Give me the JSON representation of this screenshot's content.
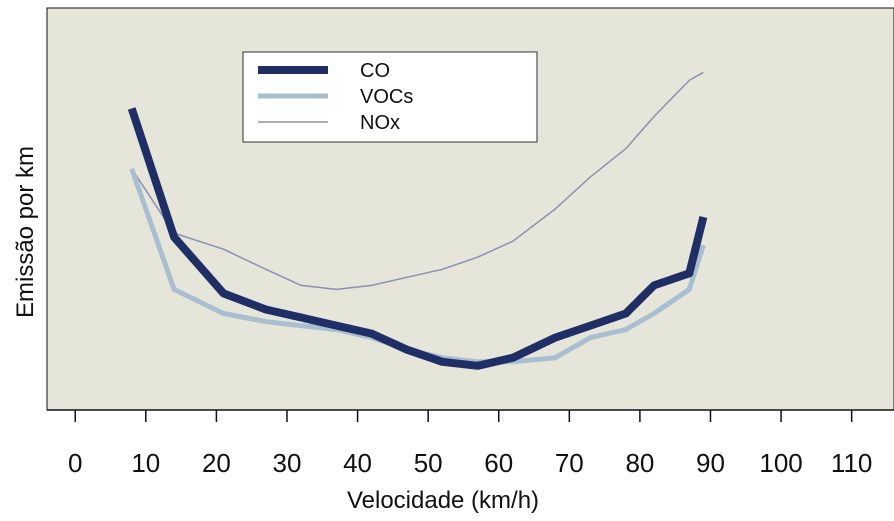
{
  "chart_data": {
    "type": "line",
    "title": "",
    "xlabel": "Velocidade (km/h)",
    "ylabel": "Emissão por km",
    "x_ticks": [
      "0",
      "10",
      "20",
      "30",
      "40",
      "50",
      "60",
      "70",
      "80",
      "90",
      "100",
      "110"
    ],
    "xlim": [
      -4,
      116
    ],
    "ylim": [
      0,
      100
    ],
    "y_ticks_shown": false,
    "grid": false,
    "legend_position": "top-center",
    "background_color": "#e6e5da",
    "series": [
      {
        "name": "CO",
        "color": "#1f2f66",
        "x": [
          8,
          14,
          21,
          27,
          32,
          37,
          42,
          47,
          52,
          57,
          62,
          68,
          73,
          78,
          82,
          87,
          89
        ],
        "values": [
          75,
          43,
          29,
          25,
          23,
          21,
          19,
          15,
          12,
          11,
          13,
          18,
          21,
          24,
          31,
          34,
          48
        ]
      },
      {
        "name": "VOCs",
        "color": "#a9bfd0",
        "x": [
          8,
          14,
          21,
          27,
          32,
          37,
          42,
          47,
          52,
          57,
          62,
          68,
          73,
          78,
          82,
          87,
          89
        ],
        "values": [
          60,
          30,
          24,
          22,
          21,
          20,
          18,
          15,
          13,
          12,
          12,
          13,
          18,
          20,
          24,
          30,
          41
        ]
      },
      {
        "name": "NOx",
        "color": "#8a90b0",
        "x": [
          8,
          14,
          21,
          27,
          32,
          37,
          42,
          47,
          52,
          57,
          62,
          68,
          73,
          78,
          82,
          87,
          89
        ],
        "values": [
          60,
          44,
          40,
          35,
          31,
          30,
          31,
          33,
          35,
          38,
          42,
          50,
          58,
          65,
          73,
          82,
          84
        ]
      }
    ]
  }
}
